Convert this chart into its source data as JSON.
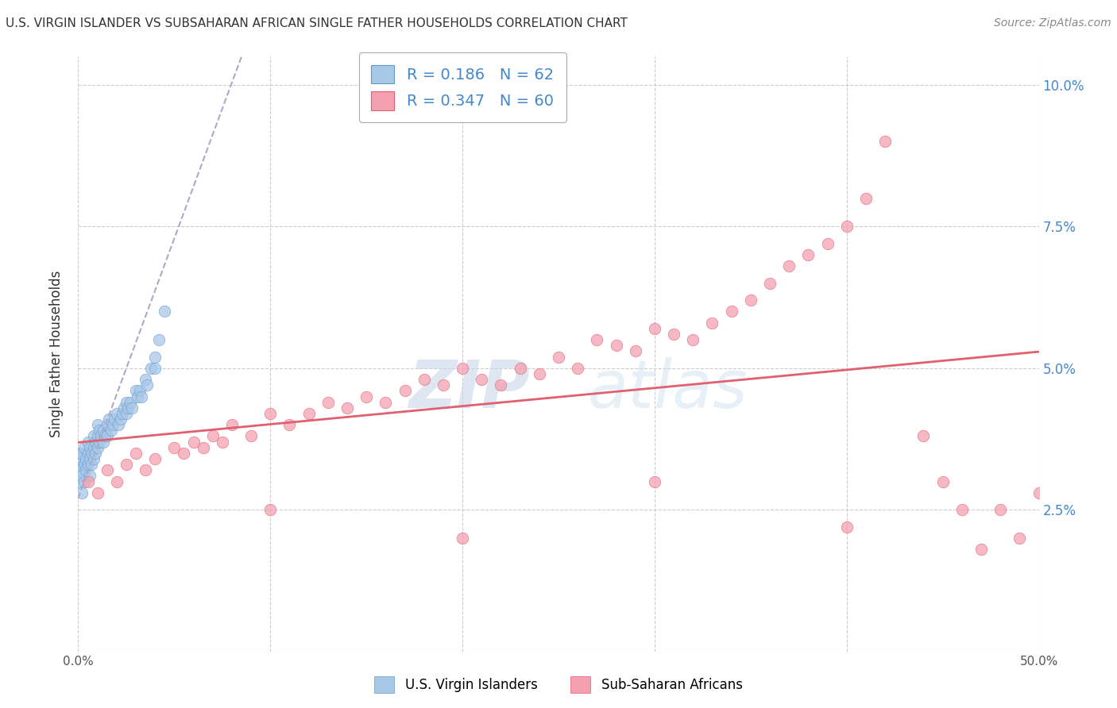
{
  "title": "U.S. VIRGIN ISLANDER VS SUBSAHARAN AFRICAN SINGLE FATHER HOUSEHOLDS CORRELATION CHART",
  "source": "Source: ZipAtlas.com",
  "ylabel": "Single Father Households",
  "xlim": [
    0,
    0.5
  ],
  "ylim": [
    0,
    0.105
  ],
  "xtick_positions": [
    0.0,
    0.5
  ],
  "xtick_labels": [
    "0.0%",
    "50.0%"
  ],
  "ytick_positions": [
    0.0,
    0.025,
    0.05,
    0.075,
    0.1
  ],
  "ytick_labels_left": [
    "",
    "",
    "",
    "",
    ""
  ],
  "ytick_labels_right": [
    "",
    "2.5%",
    "5.0%",
    "7.5%",
    "10.0%"
  ],
  "legend_label1": "U.S. Virgin Islanders",
  "legend_label2": "Sub-Saharan Africans",
  "color_blue": "#A8C8E8",
  "color_blue_edge": "#6699CC",
  "color_pink": "#F4A0B0",
  "color_pink_edge": "#E06070",
  "color_trendline_blue": "#AAAACC",
  "color_trendline_pink": "#E06070",
  "watermark_zip": "ZIP",
  "watermark_atlas": "atlas",
  "background_color": "#FFFFFF",
  "grid_color": "#CCCCCC",
  "blue_R": 0.186,
  "pink_R": 0.347,
  "blue_N": 62,
  "pink_N": 60,
  "vi_x": [
    0.0,
    0.0,
    0.0,
    0.001,
    0.001,
    0.002,
    0.002,
    0.002,
    0.003,
    0.003,
    0.003,
    0.004,
    0.004,
    0.005,
    0.005,
    0.005,
    0.006,
    0.006,
    0.006,
    0.007,
    0.007,
    0.008,
    0.008,
    0.008,
    0.009,
    0.009,
    0.01,
    0.01,
    0.01,
    0.011,
    0.011,
    0.012,
    0.013,
    0.013,
    0.014,
    0.015,
    0.015,
    0.016,
    0.017,
    0.018,
    0.019,
    0.02,
    0.021,
    0.022,
    0.023,
    0.024,
    0.025,
    0.025,
    0.026,
    0.027,
    0.028,
    0.03,
    0.031,
    0.032,
    0.033,
    0.035,
    0.036,
    0.038,
    0.04,
    0.04,
    0.042,
    0.045
  ],
  "vi_y": [
    0.035,
    0.033,
    0.03,
    0.034,
    0.032,
    0.035,
    0.031,
    0.028,
    0.036,
    0.033,
    0.03,
    0.034,
    0.032,
    0.037,
    0.035,
    0.033,
    0.036,
    0.034,
    0.031,
    0.035,
    0.033,
    0.038,
    0.036,
    0.034,
    0.037,
    0.035,
    0.04,
    0.038,
    0.036,
    0.039,
    0.037,
    0.038,
    0.039,
    0.037,
    0.038,
    0.04,
    0.038,
    0.041,
    0.039,
    0.04,
    0.041,
    0.042,
    0.04,
    0.041,
    0.042,
    0.043,
    0.044,
    0.042,
    0.043,
    0.044,
    0.043,
    0.046,
    0.045,
    0.046,
    0.045,
    0.048,
    0.047,
    0.05,
    0.052,
    0.05,
    0.055,
    0.06
  ],
  "ssa_x": [
    0.005,
    0.01,
    0.015,
    0.02,
    0.025,
    0.03,
    0.035,
    0.04,
    0.05,
    0.055,
    0.06,
    0.065,
    0.07,
    0.075,
    0.08,
    0.09,
    0.1,
    0.11,
    0.12,
    0.13,
    0.14,
    0.15,
    0.16,
    0.17,
    0.18,
    0.19,
    0.2,
    0.21,
    0.22,
    0.23,
    0.24,
    0.25,
    0.26,
    0.27,
    0.28,
    0.29,
    0.3,
    0.31,
    0.32,
    0.33,
    0.34,
    0.35,
    0.36,
    0.37,
    0.38,
    0.39,
    0.4,
    0.41,
    0.42,
    0.44,
    0.45,
    0.46,
    0.47,
    0.48,
    0.49,
    0.5,
    0.3,
    0.2,
    0.1,
    0.4
  ],
  "ssa_y": [
    0.03,
    0.028,
    0.032,
    0.03,
    0.033,
    0.035,
    0.032,
    0.034,
    0.036,
    0.035,
    0.037,
    0.036,
    0.038,
    0.037,
    0.04,
    0.038,
    0.042,
    0.04,
    0.042,
    0.044,
    0.043,
    0.045,
    0.044,
    0.046,
    0.048,
    0.047,
    0.05,
    0.048,
    0.047,
    0.05,
    0.049,
    0.052,
    0.05,
    0.055,
    0.054,
    0.053,
    0.057,
    0.056,
    0.055,
    0.058,
    0.06,
    0.062,
    0.065,
    0.068,
    0.07,
    0.072,
    0.075,
    0.08,
    0.09,
    0.038,
    0.03,
    0.025,
    0.018,
    0.025,
    0.02,
    0.028,
    0.03,
    0.02,
    0.025,
    0.022
  ]
}
